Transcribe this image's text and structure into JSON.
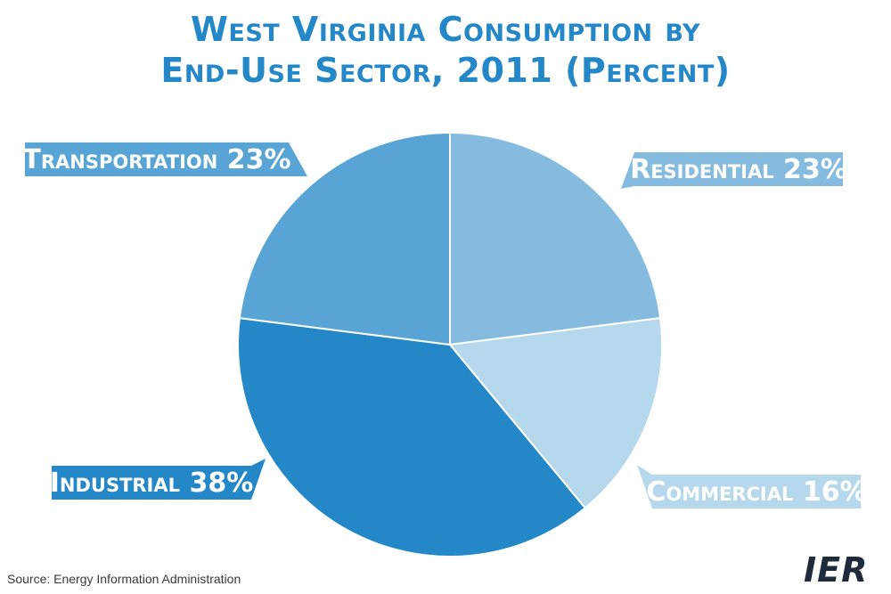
{
  "chart_data": {
    "type": "pie",
    "title_lines": [
      "West Virginia Consumption by",
      "End-Use Sector, 2011 (Percent)"
    ],
    "slices": [
      {
        "label": "Residential",
        "value": 23,
        "value_label": "23%",
        "color": "#86bbe0"
      },
      {
        "label": "Commercial",
        "value": 16,
        "value_label": "16%",
        "color": "#b5d8ec"
      },
      {
        "label": "Industrial",
        "value": 38,
        "value_label": "38%",
        "color": "#2487c8"
      },
      {
        "label": "Transportation",
        "value": 23,
        "value_label": "23%",
        "color": "#58a4d4"
      }
    ],
    "start_angle_deg": 0,
    "direction": "clockwise"
  },
  "source": "Source: Energy Information Administration",
  "logo": "IER"
}
